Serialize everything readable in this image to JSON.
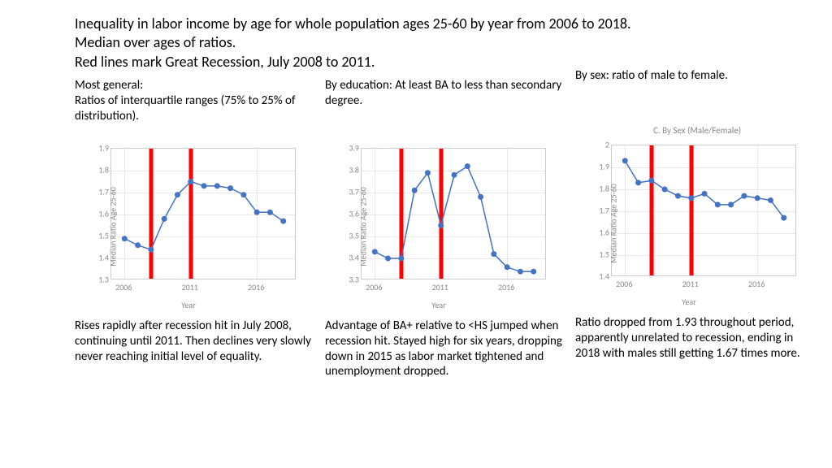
{
  "title_line1": "Inequality in labor income by age for whole population ages 25-60 by year from 2006 to 2018.",
  "title_line2": "Median over ages of ratios.",
  "title_line3": "Red lines mark Great Recession, July 2008 to 2011.",
  "common": {
    "ylabel": "Median Ratio Age 25-60",
    "xlabel": "Year",
    "line_color": "#4472c4",
    "marker_color": "#4472c4",
    "marker_size": 3.5,
    "line_width": 1.5,
    "grid_color": "#e8e8e8",
    "border_color": "#cccccc",
    "red_line_color": "#ff0000",
    "red_line_width": 5,
    "axis_font_color": "#888888",
    "axis_font_size": 10,
    "x_values": [
      2006,
      2007,
      2008,
      2009,
      2010,
      2011,
      2012,
      2013,
      2014,
      2015,
      2016,
      2017,
      2018
    ],
    "xlim": [
      2005,
      2019
    ],
    "xticks": [
      2006,
      2011,
      2016
    ],
    "red_positions": [
      2008,
      2011
    ]
  },
  "panel_a": {
    "top_label": "Most general:\nRatios of interquartile ranges (75% to 25% of distribution).",
    "chart_title": "",
    "ylim": [
      1.3,
      1.9
    ],
    "yticks": [
      1.3,
      1.4,
      1.5,
      1.6,
      1.7,
      1.8,
      1.9
    ],
    "values": [
      1.49,
      1.46,
      1.44,
      1.58,
      1.69,
      1.75,
      1.73,
      1.73,
      1.72,
      1.69,
      1.61,
      1.61,
      1.57
    ],
    "caption": "Rises rapidly after recession hit in July 2008, continuing until 2011. Then declines very slowly never reaching initial level of equality."
  },
  "panel_b": {
    "top_label": "By education: At least BA to less than secondary degree.",
    "chart_title": "",
    "ylim": [
      3.3,
      3.9
    ],
    "yticks": [
      3.3,
      3.4,
      3.5,
      3.6,
      3.7,
      3.8,
      3.9
    ],
    "values": [
      3.43,
      3.4,
      3.4,
      3.71,
      3.79,
      3.55,
      3.78,
      3.82,
      3.68,
      3.42,
      3.36,
      3.34,
      3.34
    ],
    "caption": "Advantage of BA+ relative to <HS jumped when recession hit. Stayed high for six years, dropping down in 2015 as labor market tightened and unemployment dropped."
  },
  "panel_c": {
    "top_label": "By sex: ratio of male to female.",
    "chart_title": "C. By Sex (Male/Female)",
    "ylim": [
      1.4,
      2.0
    ],
    "yticks": [
      1.4,
      1.5,
      1.6,
      1.7,
      1.8,
      1.9,
      2.0
    ],
    "values": [
      1.93,
      1.83,
      1.84,
      1.8,
      1.77,
      1.76,
      1.78,
      1.73,
      1.73,
      1.77,
      1.76,
      1.75,
      1.67
    ],
    "caption": "Ratio dropped from 1.93 throughout period, apparently unrelated to recession, ending in 2018 with males still getting 1.67 times more."
  }
}
